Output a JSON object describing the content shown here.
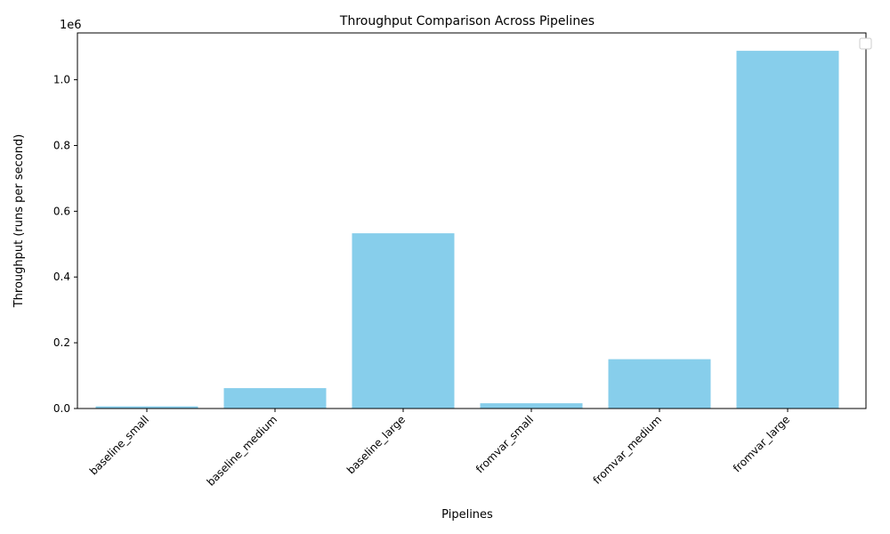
{
  "chart_data": {
    "type": "bar",
    "title": "Throughput Comparison Across Pipelines",
    "xlabel": "Pipelines",
    "ylabel": "Throughput (runs per second)",
    "y_offset_label": "1e6",
    "categories": [
      "baseline_small",
      "baseline_medium",
      "baseline_large",
      "fromvar_small",
      "fromvar_medium",
      "fromvar_large"
    ],
    "values": [
      6500,
      62000,
      533000,
      16000,
      150000,
      1088000
    ],
    "ylim": [
      0,
      1142400
    ],
    "yticks": [
      0,
      200000,
      400000,
      600000,
      800000,
      1000000
    ],
    "ytick_labels": [
      "0.0",
      "0.2",
      "0.4",
      "0.6",
      "0.8",
      "1.0"
    ],
    "bar_color": "#87ceeb",
    "legend": {
      "placement": "top-right",
      "entries": []
    },
    "grid": false
  }
}
